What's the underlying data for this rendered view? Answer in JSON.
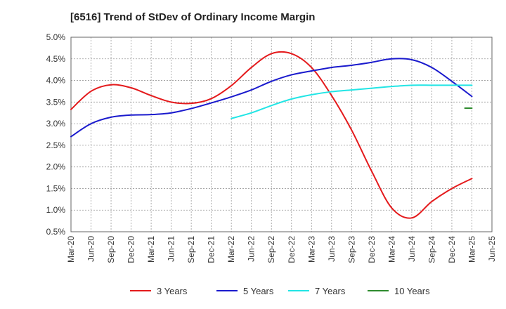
{
  "chart_data": {
    "type": "line",
    "title": "[6516]  Trend of StDev of Ordinary Income Margin",
    "xlabel": "",
    "ylabel": "",
    "x_ticks": [
      "Mar-20",
      "Jun-20",
      "Sep-20",
      "Dec-20",
      "Mar-21",
      "Jun-21",
      "Sep-21",
      "Dec-21",
      "Mar-22",
      "Jun-22",
      "Sep-22",
      "Dec-22",
      "Mar-23",
      "Jun-23",
      "Sep-23",
      "Dec-23",
      "Mar-24",
      "Jun-24",
      "Sep-24",
      "Dec-24",
      "Mar-25",
      "Jun-25"
    ],
    "y_ticks": [
      "0.5%",
      "1.0%",
      "1.5%",
      "2.0%",
      "2.5%",
      "3.0%",
      "3.5%",
      "4.0%",
      "4.5%",
      "5.0%"
    ],
    "ylim": [
      0.5,
      5.0
    ],
    "grid": true,
    "legend_position": "bottom",
    "series": [
      {
        "name": "3 Years",
        "color": "#e41a1c",
        "x": [
          0,
          1,
          2,
          3,
          4,
          5,
          6,
          7,
          8,
          9,
          10,
          11,
          12,
          13,
          14,
          15,
          16,
          17,
          18,
          19,
          20
        ],
        "values": [
          3.33,
          3.75,
          3.9,
          3.83,
          3.65,
          3.5,
          3.47,
          3.58,
          3.88,
          4.3,
          4.62,
          4.62,
          4.3,
          3.65,
          2.85,
          1.9,
          1.05,
          0.82,
          1.2,
          1.5,
          1.73
        ]
      },
      {
        "name": "5 Years",
        "color": "#1a1acd",
        "x": [
          0,
          1,
          2,
          3,
          4,
          5,
          6,
          7,
          8,
          9,
          10,
          11,
          12,
          13,
          14,
          15,
          16,
          17,
          18,
          19,
          20
        ],
        "values": [
          2.7,
          3.0,
          3.15,
          3.2,
          3.21,
          3.25,
          3.35,
          3.48,
          3.62,
          3.78,
          3.98,
          4.13,
          4.22,
          4.3,
          4.35,
          4.42,
          4.5,
          4.48,
          4.3,
          3.98,
          3.63
        ]
      },
      {
        "name": "7 Years",
        "color": "#22e5e5",
        "x": [
          8,
          9,
          10,
          11,
          12,
          13,
          14,
          15,
          16,
          17,
          18,
          19,
          20
        ],
        "values": [
          3.12,
          3.25,
          3.42,
          3.57,
          3.67,
          3.74,
          3.78,
          3.82,
          3.86,
          3.89,
          3.89,
          3.89,
          3.89
        ]
      },
      {
        "name": "10 Years",
        "color": "#2e8b2e",
        "x": [
          19.65,
          20
        ],
        "values": [
          3.36,
          3.36
        ]
      }
    ]
  }
}
